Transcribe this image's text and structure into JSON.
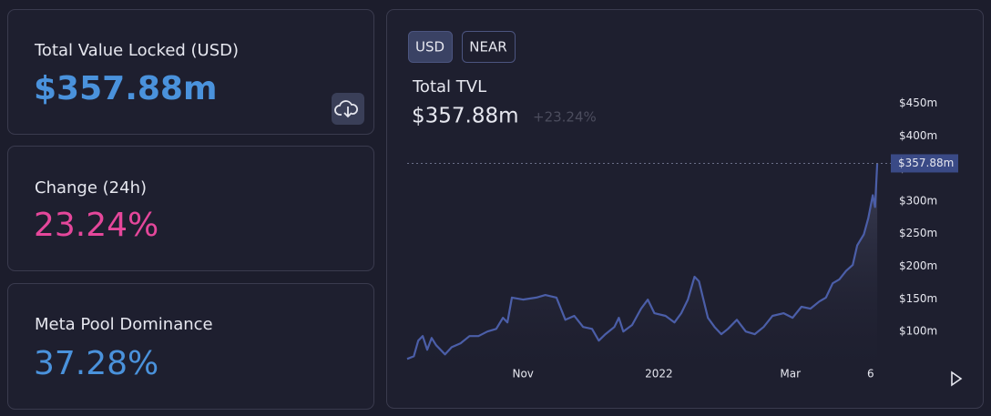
{
  "cards": [
    {
      "label": "Total Value Locked (USD)",
      "value": "$357.88m"
    },
    {
      "label": "Change (24h)",
      "value": "23.24%"
    },
    {
      "label": "Meta Pool Dominance",
      "value": "37.28%"
    }
  ],
  "tabs": [
    "USD",
    "NEAR"
  ],
  "chart_data": {
    "type": "line",
    "title": "Total TVL",
    "subtitle": "$357.88m",
    "change": "+23.24%",
    "color": "#4b5ea8",
    "x": [
      0,
      3,
      5,
      7,
      9,
      11,
      13,
      17,
      20,
      24,
      28,
      32,
      36,
      40,
      43,
      45,
      47,
      52,
      58,
      62,
      67,
      69,
      71,
      75,
      79,
      83,
      86,
      89,
      93,
      95,
      97,
      101,
      105,
      108,
      111,
      116,
      120,
      123,
      126,
      129,
      131,
      133,
      135,
      138,
      141,
      144,
      148,
      152,
      156,
      160,
      164,
      169,
      173,
      177,
      181,
      185,
      188,
      191,
      194,
      197,
      200,
      202,
      205,
      207,
      209,
      210,
      211
    ],
    "values": [
      58,
      62,
      86,
      93,
      72,
      90,
      79,
      65,
      76,
      82,
      93,
      93,
      100,
      104,
      121,
      114,
      152,
      149,
      152,
      156,
      152,
      135,
      118,
      124,
      107,
      104,
      86,
      96,
      107,
      121,
      100,
      110,
      135,
      149,
      128,
      124,
      114,
      128,
      149,
      184,
      177,
      149,
      121,
      107,
      96,
      104,
      118,
      100,
      96,
      107,
      124,
      128,
      121,
      138,
      135,
      146,
      152,
      174,
      180,
      193,
      202,
      232,
      249,
      274,
      309,
      291,
      357.88
    ],
    "xlim": [
      0,
      213
    ],
    "ylim": [
      50,
      480
    ],
    "xticks": [
      {
        "value": 52,
        "label": "Nov"
      },
      {
        "value": 113,
        "label": "2022"
      },
      {
        "value": 172,
        "label": "Mar"
      },
      {
        "value": 208,
        "label": "6"
      }
    ],
    "yticks": [
      {
        "value": 100,
        "label": "$100m"
      },
      {
        "value": 150,
        "label": "$150m"
      },
      {
        "value": 200,
        "label": "$200m"
      },
      {
        "value": 250,
        "label": "$250m"
      },
      {
        "value": 300,
        "label": "$300m"
      },
      {
        "value": 350,
        "label": "$350m"
      },
      {
        "value": 400,
        "label": "$400m"
      },
      {
        "value": 450,
        "label": "$450m"
      }
    ],
    "marker": {
      "value": 357.88,
      "label": "$357.88m"
    }
  }
}
